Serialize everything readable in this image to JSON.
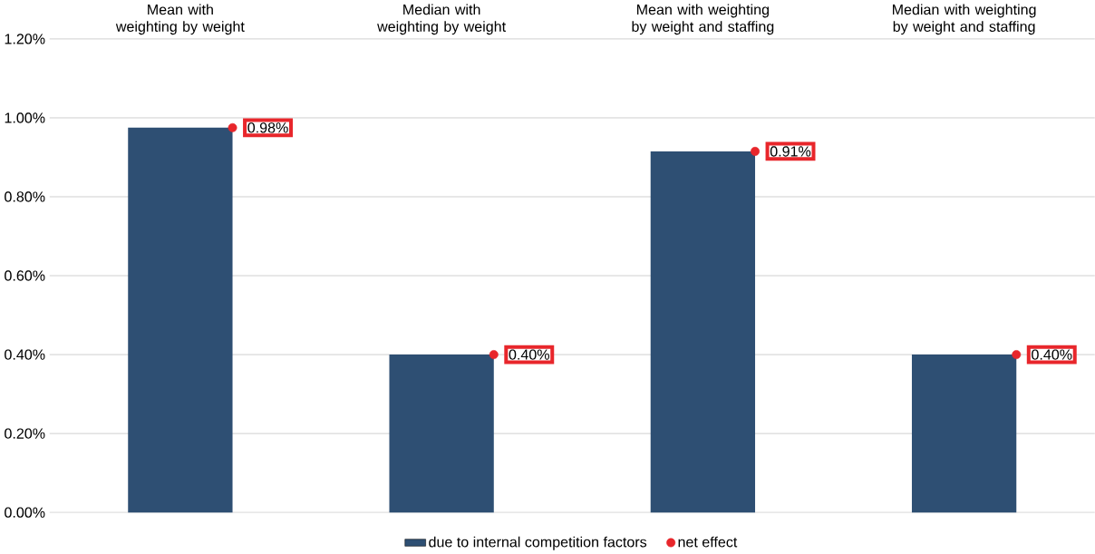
{
  "chart_data": {
    "type": "bar",
    "categories": [
      "Mean with weighting by weight",
      "Median with weighting by weight",
      "Mean with weighting by weight and staffing",
      "Median with weighting by weight and staffing"
    ],
    "series": [
      {
        "name": "due to internal competition factors",
        "color": "#2e4f73",
        "values": [
          0.975,
          0.4,
          0.915,
          0.4
        ]
      },
      {
        "name": "net effect",
        "type": "scatter",
        "color": "#e8262b",
        "x": [
          "Mean with weighting by weight",
          "Median with weighting by weight",
          "Mean with weighting by weight and staffing",
          "Median with weighting by weight and staffing"
        ],
        "values": [
          0.975,
          0.4,
          0.915,
          0.4
        ],
        "value_labels": [
          "0.98%",
          "0.40%",
          "0.91%",
          "0.40%"
        ]
      }
    ],
    "marker": "circle",
    "ylim": [
      0,
      1.2
    ],
    "yticks": [
      {
        "value": 0,
        "label": "0.00%"
      },
      {
        "value": 0.2,
        "label": "0.20%"
      },
      {
        "value": 0.4,
        "label": "0.40%"
      },
      {
        "value": 0.6,
        "label": "0.60%"
      },
      {
        "value": 0.8,
        "label": "0.80%"
      },
      {
        "value": 1.0,
        "label": "1.00%"
      },
      {
        "value": 1.2,
        "label": "1.20%"
      }
    ],
    "grid": "y",
    "legend": "bottom"
  }
}
